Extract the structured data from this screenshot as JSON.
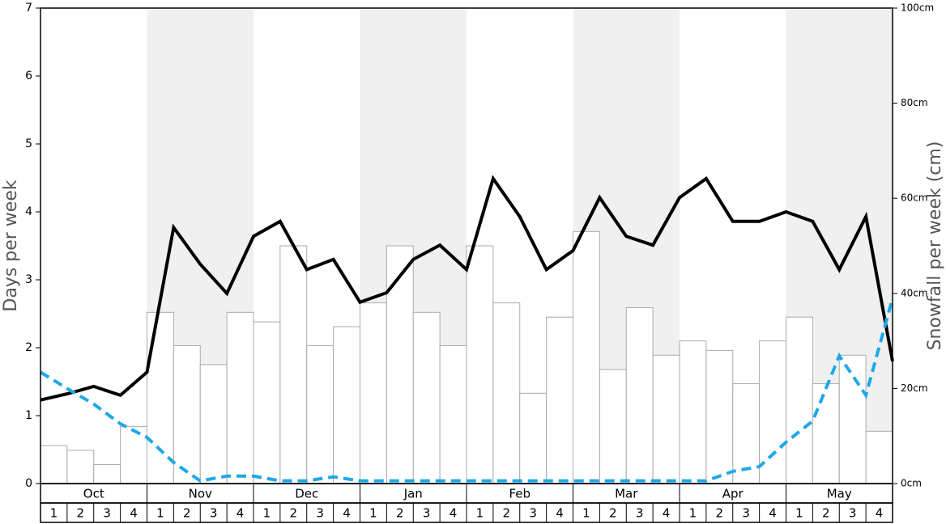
{
  "chart_data": {
    "type": "combo",
    "ylabel": "Days per week",
    "y2label": "Snowfall per week (cm)",
    "months": [
      "Oct",
      "Nov",
      "Dec",
      "Jan",
      "Feb",
      "Mar",
      "Apr",
      "May"
    ],
    "shaded_months": [
      false,
      true,
      false,
      true,
      false,
      true,
      false,
      true
    ],
    "categories": [
      "1",
      "2",
      "3",
      "4",
      "1",
      "2",
      "3",
      "4",
      "1",
      "2",
      "3",
      "4",
      "1",
      "2",
      "3",
      "4",
      "1",
      "2",
      "3",
      "4",
      "1",
      "2",
      "3",
      "4",
      "1",
      "2",
      "3",
      "4",
      "1",
      "2",
      "3",
      "4"
    ],
    "xlim": [
      0,
      32
    ],
    "ylim": [
      0,
      7
    ],
    "yticks": [
      0,
      1,
      2,
      3,
      4,
      5,
      6,
      7
    ],
    "y2lim": [
      0,
      100
    ],
    "y2ticks": [
      {
        "value": 0,
        "label": "0cm"
      },
      {
        "value": 20,
        "label": "20cm"
      },
      {
        "value": 40,
        "label": "40cm"
      },
      {
        "value": 60,
        "label": "60cm"
      },
      {
        "value": 80,
        "label": "80cm"
      },
      {
        "value": 100,
        "label": "100cm"
      }
    ],
    "series": [
      {
        "type": "bar",
        "axis": "y2",
        "color": "#ffffff",
        "stroke": "#aaaaaa",
        "values": [
          8,
          7,
          4,
          12,
          36,
          29,
          25,
          36,
          34,
          50,
          29,
          33,
          38,
          50,
          36,
          29,
          50,
          38,
          19,
          35,
          53,
          24,
          37,
          27,
          30,
          28,
          21,
          30,
          35,
          21,
          27,
          11
        ]
      },
      {
        "type": "line",
        "color": "#000000",
        "dashed": false,
        "x": [
          0,
          1,
          2,
          3,
          4,
          5,
          6,
          7,
          8,
          9,
          10,
          11,
          12,
          13,
          14,
          15,
          16,
          17,
          18,
          19,
          20,
          21,
          22,
          23,
          24,
          25,
          26,
          27,
          28,
          29,
          30,
          31,
          32
        ],
        "values": [
          1.23,
          1.32,
          1.43,
          1.3,
          1.64,
          3.77,
          3.23,
          2.8,
          3.64,
          3.86,
          3.15,
          3.3,
          2.67,
          2.81,
          3.3,
          3.51,
          3.15,
          4.49,
          3.93,
          3.15,
          3.43,
          4.21,
          3.64,
          3.51,
          4.21,
          4.49,
          3.86,
          3.86,
          4.0,
          3.86,
          3.15,
          3.93,
          1.8
        ]
      },
      {
        "type": "line",
        "color": "#1fa8e8",
        "dashed": true,
        "x": [
          0,
          1,
          2,
          3,
          4,
          5,
          6,
          7,
          8,
          9,
          10,
          11,
          12,
          13,
          14,
          15,
          16,
          17,
          18,
          19,
          20,
          21,
          22,
          23,
          24,
          25,
          26,
          27,
          28,
          29,
          30,
          31,
          32
        ],
        "values": [
          1.64,
          1.4,
          1.17,
          0.88,
          0.68,
          0.31,
          0.04,
          0.11,
          0.11,
          0.04,
          0.04,
          0.1,
          0.04,
          0.04,
          0.04,
          0.04,
          0.04,
          0.04,
          0.04,
          0.04,
          0.04,
          0.04,
          0.04,
          0.04,
          0.04,
          0.04,
          0.18,
          0.25,
          0.61,
          0.92,
          1.88,
          1.3,
          2.73
        ]
      }
    ]
  }
}
